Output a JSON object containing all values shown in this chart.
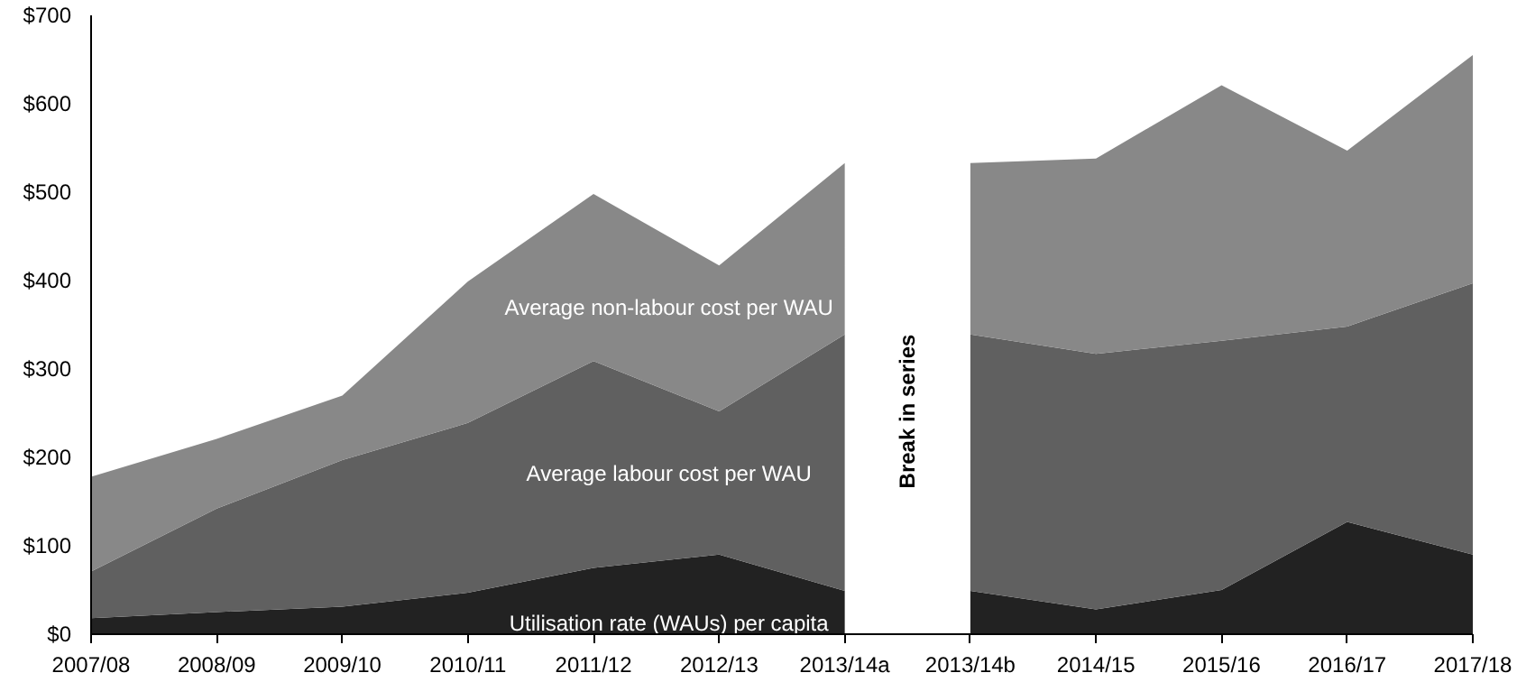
{
  "chart_data": {
    "type": "area",
    "stacked": true,
    "categories": [
      "2007/08",
      "2008/09",
      "2009/10",
      "2010/11",
      "2011/12",
      "2012/13",
      "2013/14a",
      "2013/14b",
      "2014/15",
      "2015/16",
      "2016/17",
      "2017/18"
    ],
    "series": [
      {
        "name": "Utilisation rate (WAUs) per capita",
        "color": "#222222",
        "values": [
          18,
          25,
          31,
          47,
          75,
          90,
          49,
          49,
          28,
          50,
          127,
          90
        ]
      },
      {
        "name": "Average labour cost per WAU",
        "color": "#606060",
        "values": [
          53,
          117,
          166,
          192,
          234,
          162,
          290,
          290,
          289,
          282,
          221,
          307
        ]
      },
      {
        "name": "Average non-labour cost per WAU",
        "color": "#888888",
        "values": [
          107,
          79,
          73,
          160,
          189,
          165,
          194,
          194,
          221,
          289,
          199,
          258
        ]
      }
    ],
    "ylim": [
      0,
      700
    ],
    "yticks": [
      {
        "value": 0,
        "label": "$0"
      },
      {
        "value": 100,
        "label": "$100"
      },
      {
        "value": 200,
        "label": "$200"
      },
      {
        "value": 300,
        "label": "$300"
      },
      {
        "value": 400,
        "label": "$400"
      },
      {
        "value": 500,
        "label": "$500"
      },
      {
        "value": 600,
        "label": "$600"
      },
      {
        "value": 700,
        "label": "$700"
      }
    ],
    "annotations": [
      "Break in series"
    ],
    "grid": false
  }
}
